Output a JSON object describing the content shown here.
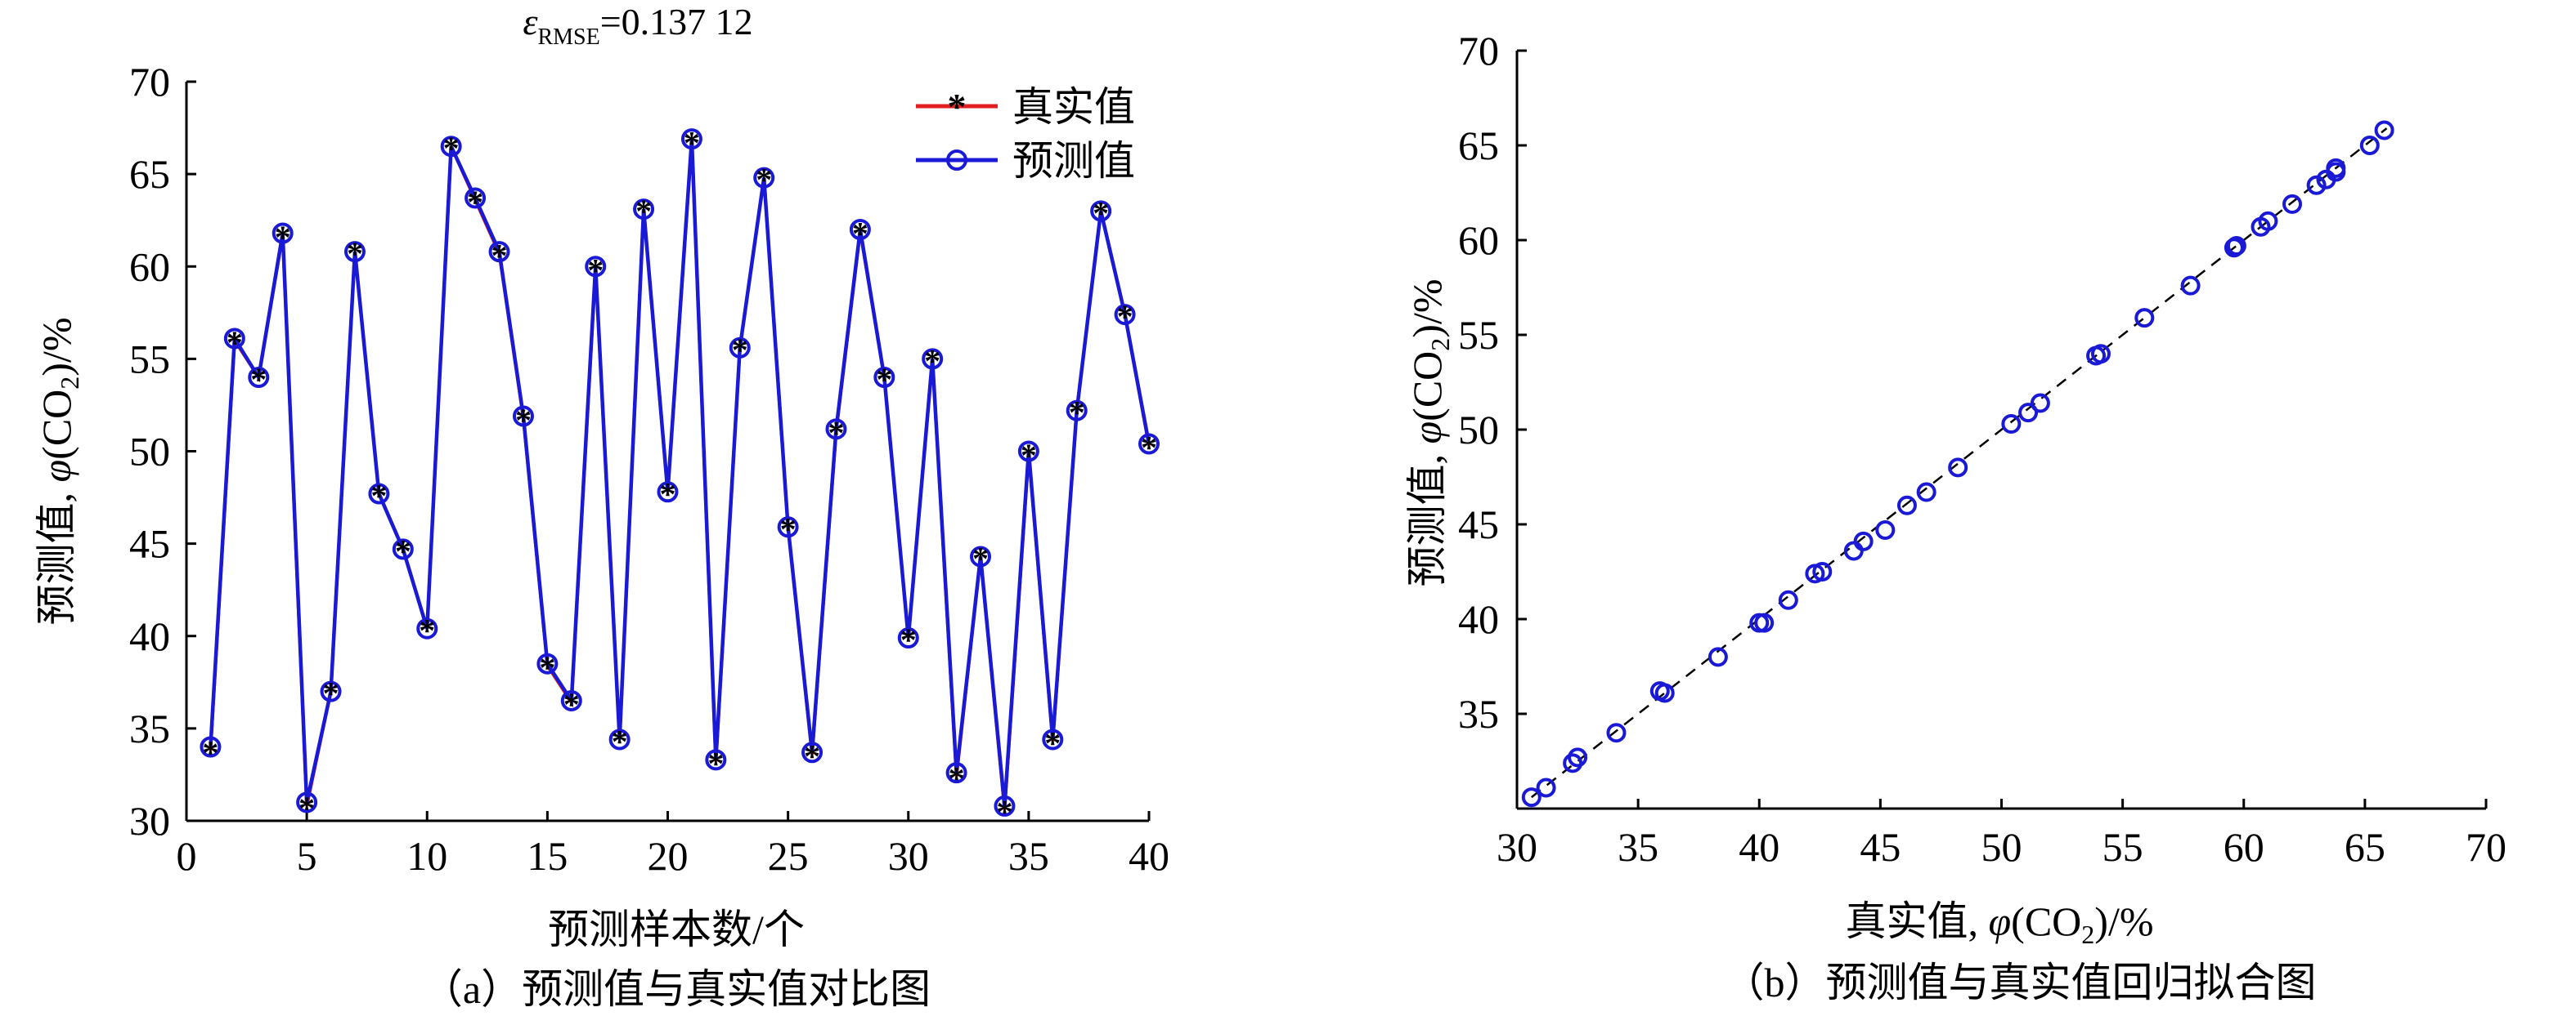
{
  "colors": {
    "true_series": "#e02020",
    "pred_series": "#1a1ad6",
    "axis": "#000000",
    "fit_line": "#000000"
  },
  "chart_data": [
    {
      "type": "line",
      "annotation": {
        "symbol": "ε",
        "subscript": "RMSE",
        "value": "=0.137 12"
      },
      "xlabel": "预测样本数/个",
      "ylabel": {
        "prefix": "预测值, ",
        "var": "φ",
        "open": "(",
        "chem": "CO",
        "sub": "2",
        "close": ")",
        "suffix": "/%"
      },
      "caption": "（a）预测值与真实值对比图",
      "xlim": [
        0,
        40
      ],
      "ylim": [
        30,
        70
      ],
      "xticks": [
        0,
        5,
        10,
        15,
        20,
        25,
        30,
        35,
        40
      ],
      "yticks": [
        30,
        35,
        40,
        45,
        50,
        55,
        60,
        65,
        70
      ],
      "legend": "top-right",
      "x": [
        1,
        2,
        3,
        4,
        5,
        6,
        7,
        8,
        9,
        10,
        11,
        12,
        13,
        14,
        15,
        16,
        17,
        18,
        19,
        20,
        21,
        22,
        23,
        24,
        25,
        26,
        27,
        28,
        29,
        30,
        31,
        32,
        33,
        34,
        35,
        36,
        37,
        38,
        39,
        40
      ],
      "series": [
        {
          "name": "真实值",
          "marker": "asterisk",
          "values": [
            33.8,
            56.0,
            54.0,
            61.7,
            30.8,
            37.0,
            60.8,
            47.7,
            44.7,
            40.4,
            66.5,
            63.6,
            60.7,
            51.8,
            38.4,
            36.4,
            59.9,
            34.4,
            63.1,
            47.8,
            66.8,
            33.2,
            55.6,
            64.8,
            45.9,
            33.6,
            51.1,
            61.9,
            54.0,
            39.9,
            55.0,
            32.4,
            44.3,
            30.6,
            49.9,
            34.3,
            52.2,
            63.0,
            57.4,
            50.3
          ]
        },
        {
          "name": "预测值",
          "marker": "circle",
          "values": [
            34.0,
            56.1,
            54.0,
            61.8,
            31.0,
            37.0,
            60.8,
            47.7,
            44.7,
            40.4,
            66.5,
            63.7,
            60.8,
            51.9,
            38.5,
            36.5,
            60.0,
            34.4,
            63.1,
            47.8,
            66.9,
            33.3,
            55.6,
            64.8,
            45.9,
            33.7,
            51.2,
            62.0,
            54.0,
            39.9,
            55.0,
            32.6,
            44.3,
            30.8,
            50.0,
            34.4,
            52.2,
            63.0,
            57.4,
            50.4
          ]
        }
      ]
    },
    {
      "type": "scatter",
      "xlabel": {
        "prefix": "真实值, ",
        "var": "φ",
        "open": "(",
        "chem": "CO",
        "sub": "2",
        "close": ")",
        "suffix": "/%"
      },
      "ylabel": {
        "prefix": "预测值, ",
        "var": "φ",
        "open": "(",
        "chem": "CO",
        "sub": "2",
        "close": ")",
        "suffix": "/%"
      },
      "caption": "（b）预测值与真实值回归拟合图",
      "xlim": [
        30,
        70
      ],
      "ylim": [
        30,
        70
      ],
      "xticks": [
        30,
        35,
        40,
        45,
        50,
        55,
        60,
        65,
        70
      ],
      "yticks": [
        35,
        40,
        45,
        50,
        55,
        60,
        65,
        70
      ],
      "fit_line": {
        "style": "dashed",
        "from": [
          30.6,
          30.6
        ],
        "to": [
          65.9,
          65.9
        ]
      },
      "points": [
        [
          30.6,
          30.6
        ],
        [
          31.2,
          31.1
        ],
        [
          32.3,
          32.4
        ],
        [
          32.5,
          32.7
        ],
        [
          34.1,
          34.0
        ],
        [
          35.9,
          36.2
        ],
        [
          36.1,
          36.1
        ],
        [
          38.3,
          38.0
        ],
        [
          40.0,
          39.8
        ],
        [
          40.2,
          39.8
        ],
        [
          41.2,
          41.0
        ],
        [
          42.3,
          42.4
        ],
        [
          42.6,
          42.5
        ],
        [
          43.9,
          43.6
        ],
        [
          44.3,
          44.1
        ],
        [
          45.2,
          44.7
        ],
        [
          46.1,
          46.0
        ],
        [
          46.9,
          46.7
        ],
        [
          48.2,
          48.0
        ],
        [
          50.4,
          50.3
        ],
        [
          51.1,
          50.9
        ],
        [
          51.6,
          51.4
        ],
        [
          53.9,
          53.9
        ],
        [
          54.1,
          54.0
        ],
        [
          55.9,
          55.9
        ],
        [
          57.8,
          57.6
        ],
        [
          59.6,
          59.6
        ],
        [
          59.7,
          59.7
        ],
        [
          60.7,
          60.7
        ],
        [
          61.0,
          61.0
        ],
        [
          62.0,
          61.9
        ],
        [
          63.0,
          62.9
        ],
        [
          63.4,
          63.2
        ],
        [
          63.8,
          63.6
        ],
        [
          63.8,
          63.8
        ],
        [
          65.2,
          65.0
        ],
        [
          65.8,
          65.8
        ]
      ]
    }
  ]
}
